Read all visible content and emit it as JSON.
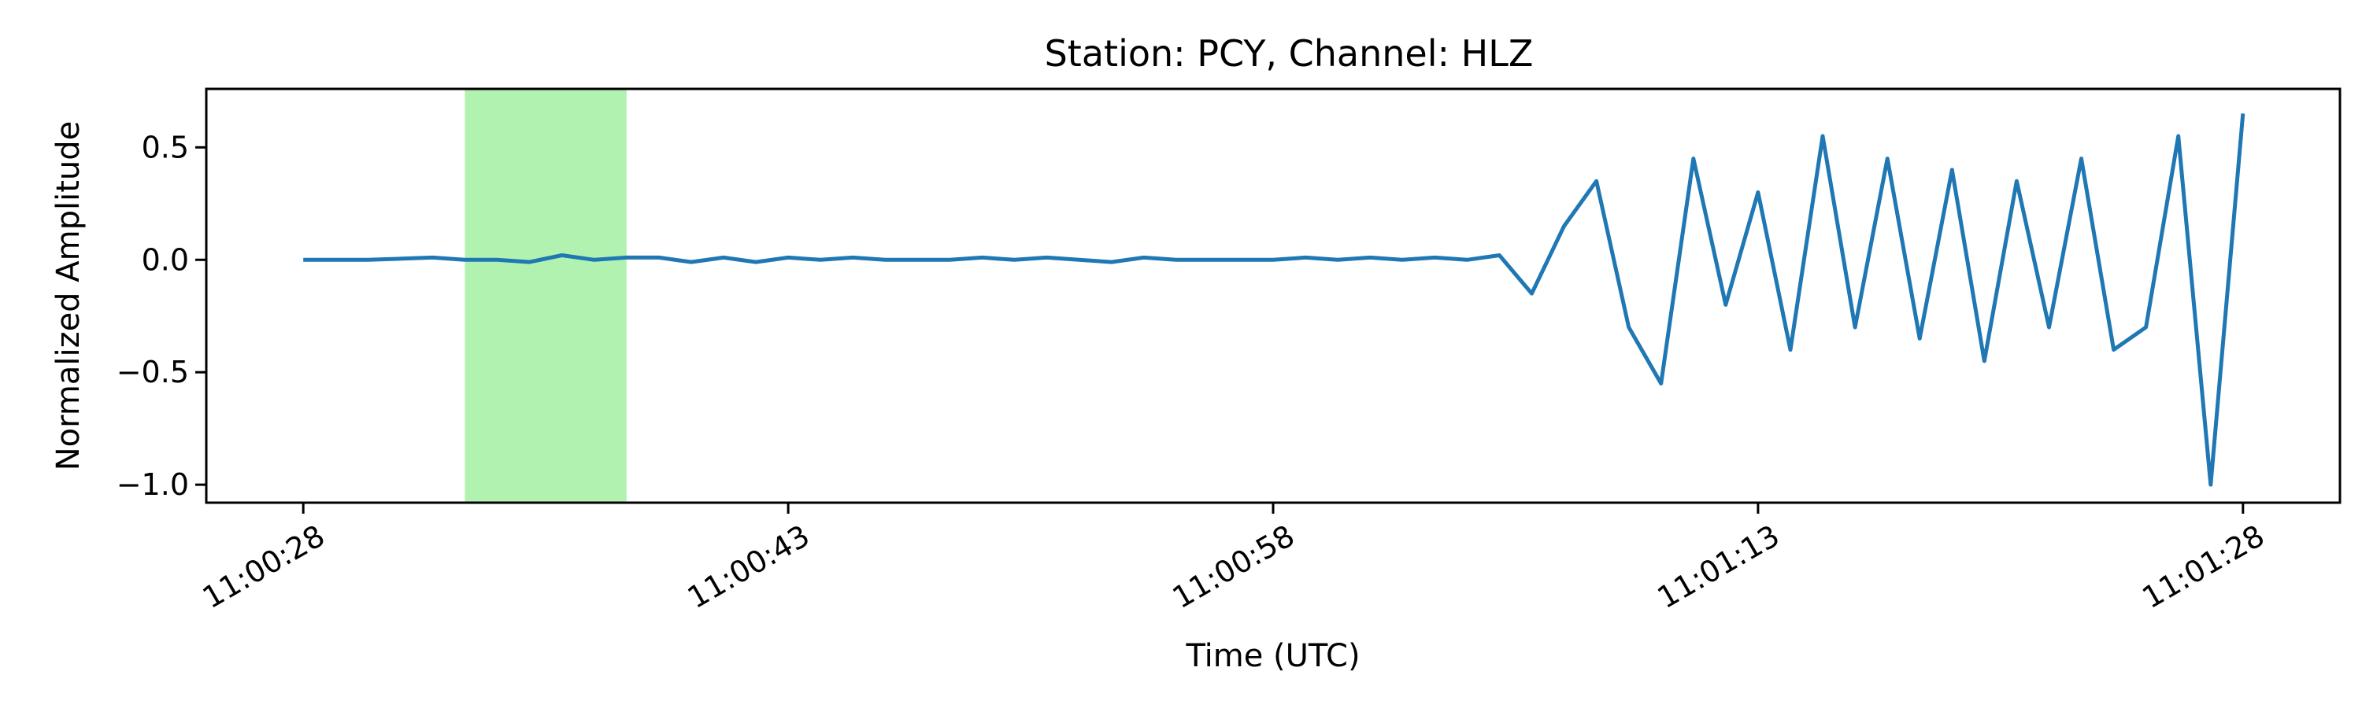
{
  "chart_data": {
    "type": "line",
    "title": "Station: PCY, Channel: HLZ",
    "xlabel": "Time (UTC)",
    "ylabel": "Normalized Amplitude",
    "x_ticks": [
      "11:00:28",
      "11:00:43",
      "11:00:58",
      "11:01:13",
      "11:01:28"
    ],
    "y_ticks": [
      {
        "value": 0.5,
        "label": "0.5"
      },
      {
        "value": 0.0,
        "label": "0.0"
      },
      {
        "value": -0.5,
        "label": "−0.5"
      },
      {
        "value": -1.0,
        "label": "−1.0"
      }
    ],
    "xlim": [
      "11:00:25",
      "11:01:31"
    ],
    "ylim": [
      -1.08,
      0.76
    ],
    "grid": false,
    "line_color": "#1f77b4",
    "highlight": {
      "start": "11:00:33",
      "end": "11:00:38",
      "color": "#b2f2b0"
    },
    "series": [
      {
        "x": [
          "11:00:28",
          "11:00:30",
          "11:00:32",
          "11:00:33",
          "11:00:34",
          "11:00:35",
          "11:00:36",
          "11:00:37",
          "11:00:38",
          "11:00:39",
          "11:00:40",
          "11:00:41",
          "11:00:42",
          "11:00:43",
          "11:00:44",
          "11:00:45",
          "11:00:46",
          "11:00:47",
          "11:00:48",
          "11:00:49",
          "11:00:50",
          "11:00:51",
          "11:00:52",
          "11:00:53",
          "11:00:54",
          "11:00:55",
          "11:00:56",
          "11:00:57",
          "11:00:58",
          "11:00:59",
          "11:01:00",
          "11:01:01",
          "11:01:02",
          "11:01:03",
          "11:01:04",
          "11:01:05",
          "11:01:06",
          "11:01:07",
          "11:01:08",
          "11:01:09",
          "11:01:10",
          "11:01:11",
          "11:01:12",
          "11:01:13",
          "11:01:14",
          "11:01:15",
          "11:01:16",
          "11:01:17",
          "11:01:18",
          "11:01:19",
          "11:01:20",
          "11:01:21",
          "11:01:22",
          "11:01:23",
          "11:01:24",
          "11:01:25",
          "11:01:26",
          "11:01:27",
          "11:01:28"
        ],
        "values": [
          0.0,
          0.0,
          0.01,
          0.0,
          0.0,
          -0.01,
          0.02,
          0.0,
          0.01,
          0.01,
          -0.01,
          0.01,
          -0.01,
          0.01,
          0.0,
          0.01,
          0.0,
          0.0,
          0.0,
          0.01,
          0.0,
          0.01,
          0.0,
          -0.01,
          0.01,
          0.0,
          0.0,
          0.0,
          0.0,
          0.01,
          0.0,
          0.01,
          0.0,
          0.01,
          0.0,
          0.02,
          -0.15,
          0.15,
          0.35,
          -0.3,
          -0.55,
          0.45,
          -0.2,
          0.3,
          -0.4,
          0.55,
          -0.3,
          0.45,
          -0.35,
          0.4,
          -0.45,
          0.35,
          -0.3,
          0.45,
          -0.4,
          -0.3,
          0.55,
          -1.0,
          0.65
        ]
      }
    ]
  }
}
